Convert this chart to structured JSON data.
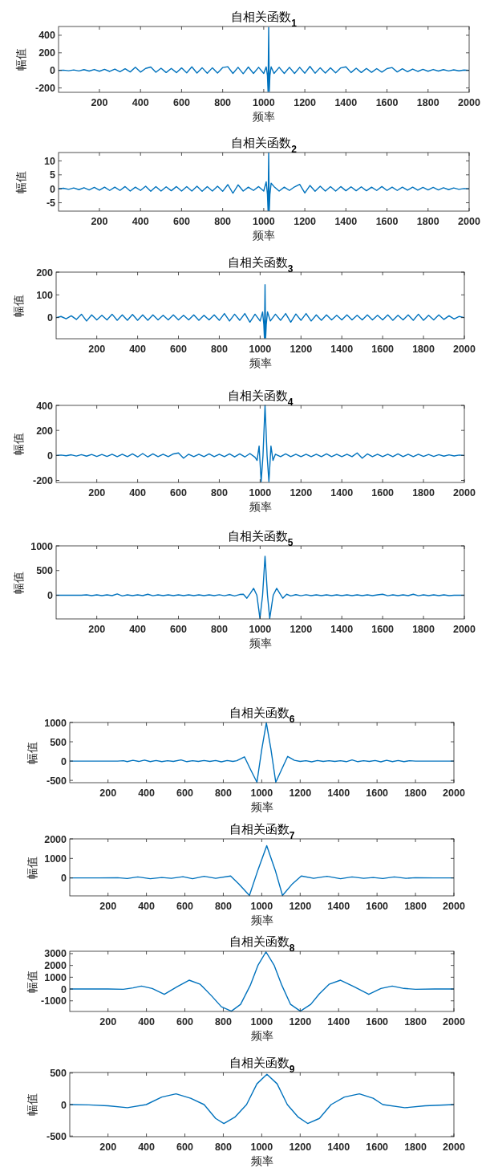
{
  "chart_data": [
    {
      "type": "line",
      "title": "自相关函数$_{1}$",
      "xlabel": "频率",
      "ylabel": "幅值",
      "xlim": [
        1,
        2000
      ],
      "ylim": [
        -250,
        500
      ],
      "xticks": [
        200,
        400,
        600,
        800,
        1000,
        1200,
        1400,
        1600,
        1800,
        2000
      ],
      "yticks": [
        -200,
        0,
        200,
        400
      ],
      "x": [
        1,
        25,
        50,
        75,
        100,
        125,
        150,
        175,
        200,
        225,
        250,
        275,
        300,
        325,
        350,
        375,
        400,
        425,
        450,
        475,
        500,
        525,
        550,
        575,
        600,
        625,
        650,
        675,
        700,
        725,
        750,
        775,
        800,
        825,
        850,
        875,
        900,
        925,
        950,
        975,
        1000,
        1012,
        1018,
        1021,
        1024,
        1027,
        1030,
        1036,
        1050,
        1075,
        1100,
        1125,
        1150,
        1175,
        1200,
        1225,
        1250,
        1275,
        1300,
        1325,
        1350,
        1375,
        1400,
        1425,
        1450,
        1475,
        1500,
        1525,
        1550,
        1575,
        1600,
        1625,
        1650,
        1675,
        1700,
        1725,
        1750,
        1775,
        1800,
        1825,
        1850,
        1875,
        1900,
        1925,
        1950,
        1975,
        2000
      ],
      "series": [
        {
          "color": "#0072bd",
          "values": [
            0,
            3,
            -4,
            5,
            -6,
            8,
            -8,
            10,
            -10,
            12,
            -12,
            15,
            -15,
            18,
            -18,
            35,
            -20,
            22,
            38,
            -22,
            25,
            -25,
            22,
            -25,
            28,
            -28,
            40,
            -30,
            30,
            -32,
            30,
            -30,
            32,
            42,
            -35,
            35,
            -38,
            38,
            -35,
            35,
            -35,
            40,
            -60,
            -240,
            490,
            -240,
            -60,
            40,
            -35,
            35,
            -35,
            35,
            -35,
            35,
            -32,
            45,
            -32,
            30,
            -30,
            30,
            -28,
            28,
            40,
            -25,
            25,
            -25,
            22,
            -22,
            20,
            -20,
            20,
            32,
            -18,
            18,
            -15,
            15,
            -12,
            12,
            -10,
            10,
            -8,
            8,
            -6,
            6,
            -5,
            4,
            0
          ]
        }
      ]
    },
    {
      "type": "line",
      "title": "自相关函数$_{2}$",
      "xlabel": "频率",
      "ylabel": "幅值",
      "xlim": [
        1,
        2000
      ],
      "ylim": [
        -8,
        13
      ],
      "xticks": [
        200,
        400,
        600,
        800,
        1000,
        1200,
        1400,
        1600,
        1800,
        2000
      ],
      "yticks": [
        -5,
        0,
        5,
        10
      ],
      "x": [
        1,
        25,
        50,
        75,
        100,
        125,
        150,
        175,
        200,
        225,
        250,
        275,
        300,
        325,
        350,
        375,
        400,
        425,
        450,
        475,
        500,
        525,
        550,
        575,
        600,
        625,
        650,
        675,
        700,
        725,
        750,
        775,
        800,
        825,
        850,
        875,
        900,
        925,
        950,
        975,
        1000,
        1012,
        1018,
        1021,
        1024,
        1027,
        1030,
        1036,
        1050,
        1075,
        1100,
        1125,
        1150,
        1175,
        1200,
        1225,
        1250,
        1275,
        1300,
        1325,
        1350,
        1375,
        1400,
        1425,
        1450,
        1475,
        1500,
        1525,
        1550,
        1575,
        1600,
        1625,
        1650,
        1675,
        1700,
        1725,
        1750,
        1775,
        1800,
        1825,
        1850,
        1875,
        1900,
        1925,
        1950,
        1975,
        2000
      ],
      "series": [
        {
          "color": "#0072bd",
          "values": [
            0,
            0.2,
            -0.2,
            0.3,
            -0.3,
            0.4,
            -0.4,
            0.5,
            -0.5,
            0.6,
            -0.6,
            0.6,
            -0.6,
            0.8,
            -0.8,
            0.6,
            -0.6,
            0.9,
            -0.9,
            0.8,
            -0.8,
            0.7,
            -0.7,
            0.8,
            -0.8,
            0.8,
            -0.8,
            0.9,
            -0.9,
            0.8,
            -0.8,
            0.9,
            -0.9,
            1.5,
            -1.6,
            1.4,
            -0.8,
            0.6,
            -0.6,
            0.8,
            -0.8,
            2.5,
            -2,
            -7.8,
            12.8,
            -7.8,
            -2,
            2,
            0.8,
            -0.8,
            0.6,
            -0.6,
            0.7,
            1.6,
            -1.5,
            1.2,
            -0.9,
            0.9,
            -0.8,
            0.8,
            -0.8,
            0.8,
            -0.7,
            0.7,
            -0.7,
            0.7,
            -0.7,
            0.6,
            -0.6,
            0.8,
            -0.6,
            0.6,
            -0.6,
            0.6,
            -0.5,
            0.6,
            -0.5,
            0.5,
            -0.4,
            0.5,
            -0.4,
            0.4,
            -0.3,
            0.3,
            -0.2,
            0.1,
            0
          ]
        }
      ]
    },
    {
      "type": "line",
      "title": "自相关函数$_{3}$",
      "xlabel": "频率",
      "ylabel": "幅值",
      "xlim": [
        1,
        2000
      ],
      "ylim": [
        -93,
        200
      ],
      "xticks": [
        200,
        400,
        600,
        800,
        1000,
        1200,
        1400,
        1600,
        1800,
        2000
      ],
      "yticks": [
        0,
        100,
        200
      ],
      "x": [
        1,
        25,
        50,
        75,
        100,
        125,
        150,
        175,
        200,
        225,
        250,
        275,
        300,
        325,
        350,
        375,
        400,
        425,
        450,
        475,
        500,
        525,
        550,
        575,
        600,
        625,
        650,
        675,
        700,
        725,
        750,
        775,
        800,
        825,
        850,
        875,
        900,
        925,
        950,
        975,
        1000,
        1012,
        1018,
        1021,
        1024,
        1027,
        1030,
        1036,
        1050,
        1075,
        1100,
        1125,
        1150,
        1175,
        1200,
        1225,
        1250,
        1275,
        1300,
        1325,
        1350,
        1375,
        1400,
        1425,
        1450,
        1475,
        1500,
        1525,
        1550,
        1575,
        1600,
        1625,
        1650,
        1675,
        1700,
        1725,
        1750,
        1775,
        1800,
        1825,
        1850,
        1875,
        1900,
        1925,
        1950,
        1975,
        2000
      ],
      "series": [
        {
          "color": "#0072bd",
          "values": [
            0,
            5,
            -5,
            8,
            -8,
            15,
            -15,
            12,
            -10,
            10,
            -10,
            15,
            -12,
            12,
            -12,
            14,
            -12,
            12,
            -12,
            12,
            -10,
            10,
            -10,
            12,
            -10,
            10,
            -10,
            12,
            -12,
            10,
            -10,
            12,
            -12,
            18,
            -15,
            15,
            -12,
            18,
            -20,
            15,
            -15,
            25,
            -30,
            -90,
            145,
            -90,
            -30,
            25,
            -15,
            15,
            -12,
            18,
            -20,
            16,
            -12,
            18,
            -15,
            12,
            -12,
            12,
            -10,
            10,
            -10,
            12,
            -10,
            10,
            -10,
            12,
            -10,
            10,
            -10,
            12,
            -12,
            10,
            -10,
            12,
            -12,
            15,
            -12,
            10,
            -10,
            12,
            -8,
            8,
            -6,
            5,
            0
          ]
        }
      ]
    },
    {
      "type": "line",
      "title": "自相关函数$_{4}$",
      "xlabel": "频率",
      "ylabel": "幅值",
      "xlim": [
        1,
        2000
      ],
      "ylim": [
        -216,
        400
      ],
      "xticks": [
        200,
        400,
        600,
        800,
        1000,
        1200,
        1400,
        1600,
        1800,
        2000
      ],
      "yticks": [
        -200,
        0,
        200,
        400
      ],
      "x": [
        1,
        25,
        50,
        75,
        100,
        125,
        150,
        175,
        200,
        225,
        250,
        275,
        300,
        325,
        350,
        375,
        400,
        425,
        450,
        475,
        500,
        525,
        550,
        575,
        600,
        625,
        650,
        675,
        700,
        725,
        750,
        775,
        800,
        825,
        850,
        875,
        900,
        925,
        950,
        975,
        985,
        995,
        1005,
        1014,
        1024,
        1034,
        1043,
        1053,
        1063,
        1075,
        1100,
        1125,
        1150,
        1175,
        1200,
        1225,
        1250,
        1275,
        1300,
        1325,
        1350,
        1375,
        1400,
        1425,
        1450,
        1475,
        1500,
        1525,
        1550,
        1575,
        1600,
        1625,
        1650,
        1675,
        1700,
        1725,
        1750,
        1775,
        1800,
        1825,
        1850,
        1875,
        1900,
        1925,
        1950,
        1975,
        2000
      ],
      "series": [
        {
          "color": "#0072bd",
          "values": [
            0,
            3,
            -3,
            5,
            -5,
            6,
            -6,
            8,
            -8,
            8,
            -8,
            10,
            -10,
            10,
            -10,
            12,
            -12,
            15,
            -12,
            12,
            -10,
            10,
            -10,
            12,
            20,
            -22,
            10,
            -10,
            10,
            -10,
            12,
            -10,
            10,
            -10,
            12,
            -12,
            12,
            -12,
            15,
            -15,
            -40,
            75,
            -210,
            0,
            400,
            0,
            -210,
            75,
            -40,
            10,
            -10,
            12,
            -10,
            10,
            -10,
            10,
            -10,
            10,
            -10,
            12,
            -10,
            10,
            -10,
            10,
            -10,
            20,
            -22,
            12,
            -10,
            10,
            -10,
            10,
            -10,
            12,
            -10,
            10,
            -10,
            10,
            -8,
            8,
            -8,
            6,
            -6,
            5,
            -4,
            3,
            0
          ]
        }
      ]
    },
    {
      "type": "line",
      "title": "自相关函数$_{5}$",
      "xlabel": "频率",
      "ylabel": "幅值",
      "xlim": [
        1,
        2000
      ],
      "ylim": [
        -480,
        1000
      ],
      "xticks": [
        200,
        400,
        600,
        800,
        1000,
        1200,
        1400,
        1600,
        1800,
        2000
      ],
      "yticks": [
        0,
        500,
        1000
      ],
      "x": [
        1,
        25,
        50,
        75,
        100,
        125,
        150,
        175,
        200,
        225,
        250,
        275,
        300,
        325,
        350,
        375,
        400,
        425,
        450,
        475,
        500,
        525,
        550,
        575,
        600,
        625,
        650,
        675,
        700,
        725,
        750,
        775,
        800,
        825,
        850,
        875,
        900,
        918,
        935,
        952,
        968,
        984,
        999,
        1012,
        1024,
        1036,
        1047,
        1064,
        1081,
        1096,
        1111,
        1130,
        1150,
        1175,
        1200,
        1225,
        1250,
        1275,
        1300,
        1325,
        1350,
        1375,
        1400,
        1425,
        1450,
        1475,
        1500,
        1525,
        1550,
        1575,
        1600,
        1625,
        1650,
        1675,
        1700,
        1725,
        1750,
        1775,
        1800,
        1825,
        1850,
        1875,
        1900,
        1925,
        1950,
        1975,
        2000
      ],
      "series": [
        {
          "color": "#0072bd",
          "values": [
            0,
            0,
            0,
            0,
            0,
            0,
            8,
            -8,
            8,
            -8,
            8,
            -8,
            25,
            -15,
            8,
            -8,
            8,
            -8,
            20,
            -10,
            8,
            -8,
            8,
            -8,
            8,
            -8,
            8,
            -8,
            8,
            -8,
            8,
            -8,
            10,
            -10,
            12,
            -15,
            15,
            20,
            -60,
            40,
            140,
            0,
            -470,
            0,
            790,
            0,
            -470,
            0,
            140,
            40,
            -60,
            20,
            -15,
            12,
            -10,
            10,
            -8,
            8,
            -8,
            8,
            -8,
            8,
            -8,
            8,
            -8,
            8,
            -8,
            8,
            -8,
            8,
            20,
            -10,
            8,
            -8,
            8,
            -8,
            20,
            -10,
            8,
            -8,
            8,
            -8,
            8,
            -8,
            0,
            0,
            0
          ]
        }
      ]
    },
    {
      "type": "line",
      "title": "自相关函数$_{6}$",
      "xlabel": "频率",
      "ylabel": "幅值",
      "xlim": [
        1,
        2000
      ],
      "ylim": [
        -560,
        1000
      ],
      "xticks": [
        200,
        400,
        600,
        800,
        1000,
        1200,
        1400,
        1600,
        1800,
        2000
      ],
      "yticks": [
        -500,
        0,
        500,
        1000
      ],
      "x": [
        1,
        100,
        200,
        250,
        280,
        300,
        330,
        360,
        390,
        420,
        450,
        480,
        510,
        540,
        580,
        610,
        640,
        670,
        700,
        730,
        760,
        790,
        820,
        850,
        870,
        910,
        940,
        975,
        1000,
        1024,
        1048,
        1073,
        1105,
        1135,
        1170,
        1200,
        1230,
        1260,
        1290,
        1320,
        1350,
        1380,
        1410,
        1440,
        1470,
        1500,
        1530,
        1560,
        1590,
        1620,
        1650,
        1680,
        1710,
        1740,
        1770,
        1800,
        1900,
        2000
      ],
      "series": [
        {
          "color": "#0072bd",
          "values": [
            0,
            0,
            0,
            0,
            10,
            -15,
            20,
            -10,
            25,
            -15,
            15,
            -15,
            10,
            -10,
            30,
            -15,
            10,
            -10,
            15,
            -10,
            15,
            -20,
            15,
            -10,
            10,
            110,
            -200,
            -550,
            300,
            990,
            300,
            -550,
            -200,
            120,
            20,
            -10,
            10,
            -20,
            15,
            -10,
            10,
            -10,
            10,
            -15,
            30,
            -15,
            10,
            -10,
            15,
            -20,
            20,
            -15,
            15,
            -15,
            10,
            0,
            0,
            0
          ]
        }
      ]
    },
    {
      "type": "line",
      "title": "自相关函数$_{7}$",
      "xlabel": "频率",
      "ylabel": "幅值",
      "xlim": [
        1,
        2000
      ],
      "ylim": [
        -920,
        2000
      ],
      "xticks": [
        200,
        400,
        600,
        800,
        1000,
        1200,
        1400,
        1600,
        1800,
        2000
      ],
      "yticks": [
        0,
        1000,
        2000
      ],
      "x": [
        1,
        150,
        250,
        300,
        355,
        420,
        480,
        530,
        590,
        640,
        700,
        760,
        838,
        880,
        936,
        980,
        1026,
        1070,
        1108,
        1160,
        1206,
        1270,
        1340,
        1410,
        1470,
        1530,
        1580,
        1630,
        1690,
        1750,
        1800,
        1900,
        2000
      ],
      "series": [
        {
          "color": "#0072bd",
          "values": [
            0,
            0,
            10,
            -30,
            50,
            -40,
            20,
            -20,
            60,
            -40,
            80,
            -20,
            100,
            -300,
            -900,
            400,
            1650,
            400,
            -900,
            -300,
            100,
            -20,
            80,
            -40,
            50,
            -20,
            20,
            -30,
            50,
            -20,
            10,
            0,
            0
          ]
        }
      ]
    },
    {
      "type": "line",
      "title": "自相关函数$_{8}$",
      "xlabel": "频率",
      "ylabel": "幅值",
      "xlim": [
        1,
        2000
      ],
      "ylim": [
        -1900,
        3200
      ],
      "xticks": [
        200,
        400,
        600,
        800,
        1000,
        1200,
        1400,
        1600,
        1800,
        2000
      ],
      "yticks": [
        -1000,
        0,
        1000,
        2000,
        3000
      ],
      "x": [
        1,
        100,
        200,
        280,
        330,
        374,
        430,
        493,
        560,
        622,
        680,
        740,
        790,
        842,
        890,
        940,
        980,
        1022,
        1065,
        1105,
        1150,
        1201,
        1255,
        1300,
        1350,
        1410,
        1480,
        1557,
        1620,
        1679,
        1740,
        1800,
        1900,
        2000
      ],
      "series": [
        {
          "color": "#0072bd",
          "values": [
            0,
            0,
            0,
            -20,
            100,
            250,
            50,
            -450,
            200,
            750,
            400,
            -600,
            -1500,
            -1870,
            -1300,
            300,
            2000,
            3150,
            2000,
            300,
            -1300,
            -1870,
            -1300,
            -400,
            400,
            750,
            200,
            -450,
            50,
            250,
            50,
            -20,
            0,
            0
          ]
        }
      ]
    },
    {
      "type": "line",
      "title": "自相关函数$_{9}$",
      "xlabel": "频率",
      "ylabel": "幅值",
      "xlim": [
        1,
        2000
      ],
      "ylim": [
        -510,
        510
      ],
      "xticks": [
        200,
        400,
        600,
        800,
        1000,
        1200,
        1400,
        1600,
        1800,
        2000
      ],
      "yticks": [
        -500,
        0,
        500
      ],
      "x": [
        1,
        100,
        200,
        301,
        399,
        480,
        554,
        630,
        700,
        760,
        803,
        860,
        921,
        975,
        1027,
        1080,
        1133,
        1190,
        1239,
        1300,
        1361,
        1430,
        1508,
        1580,
        1630,
        1744,
        1850,
        2000
      ],
      "series": [
        {
          "color": "#0072bd",
          "values": [
            0,
            -5,
            -20,
            -50,
            0,
            120,
            170,
            100,
            0,
            -220,
            -300,
            -200,
            0,
            330,
            480,
            330,
            0,
            -200,
            -300,
            -220,
            0,
            120,
            170,
            100,
            0,
            -50,
            -20,
            0
          ]
        }
      ]
    }
  ]
}
